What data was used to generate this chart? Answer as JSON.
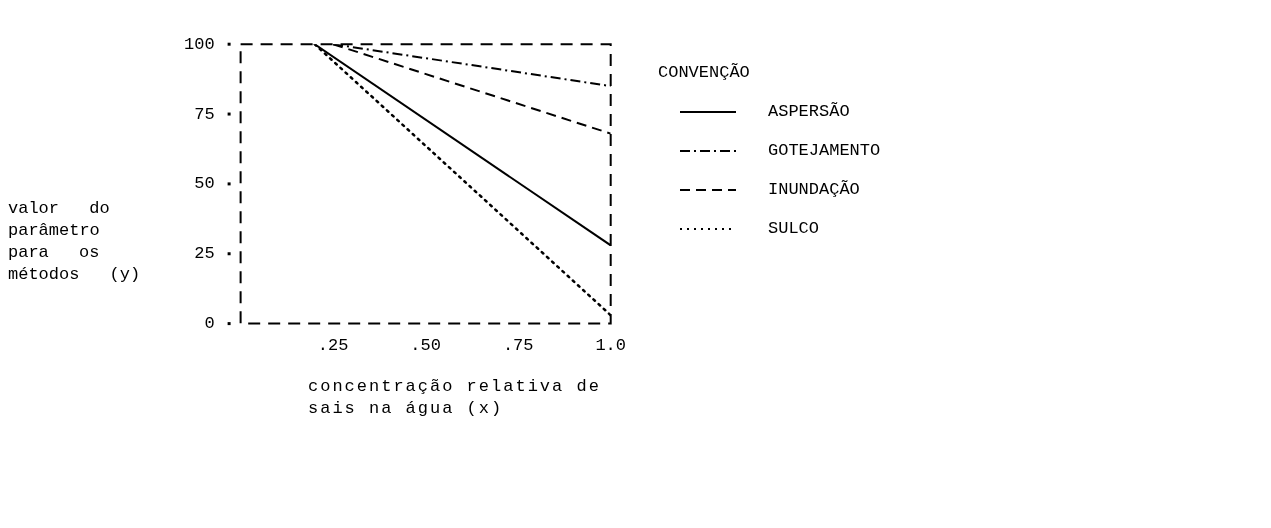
{
  "chart_data": {
    "type": "line",
    "xlabel": "concentração relativa de sais na água (x)",
    "ylabel": "valor do parâmetro para os métodos (y)",
    "legend_title": "CONVENÇÃO",
    "legend": "right",
    "grid": false,
    "marker": "none",
    "xlim": [
      0,
      1
    ],
    "xticks": [
      {
        "value": 0,
        "label": null
      },
      {
        "value": 0.25,
        "label": ".25"
      },
      {
        "value": 0.5,
        "label": ".50"
      },
      {
        "value": 0.75,
        "label": ".75"
      },
      {
        "value": 1,
        "label": "1.0"
      }
    ],
    "ylim": [
      0,
      100
    ],
    "yticks": [
      0,
      25,
      50,
      75,
      100
    ],
    "series": [
      {
        "name": "ASPERSÃO",
        "color": "#000000",
        "line_style": "solid",
        "x": [
          0.2,
          1
        ],
        "values": [
          100,
          28
        ]
      },
      {
        "name": "GOTEJAMENTO",
        "color": "#000000",
        "line_style": "dashdot",
        "x": [
          0.25,
          1
        ],
        "values": [
          100,
          85
        ]
      },
      {
        "name": "INUNDAÇÃO",
        "color": "#000000",
        "line_style": "dashed",
        "x": [
          0.25,
          1
        ],
        "values": [
          100,
          68
        ]
      },
      {
        "name": "SULCO",
        "color": "#000000",
        "line_style": "dotted",
        "x": [
          0.2,
          1
        ],
        "values": [
          100,
          3
        ]
      }
    ]
  }
}
